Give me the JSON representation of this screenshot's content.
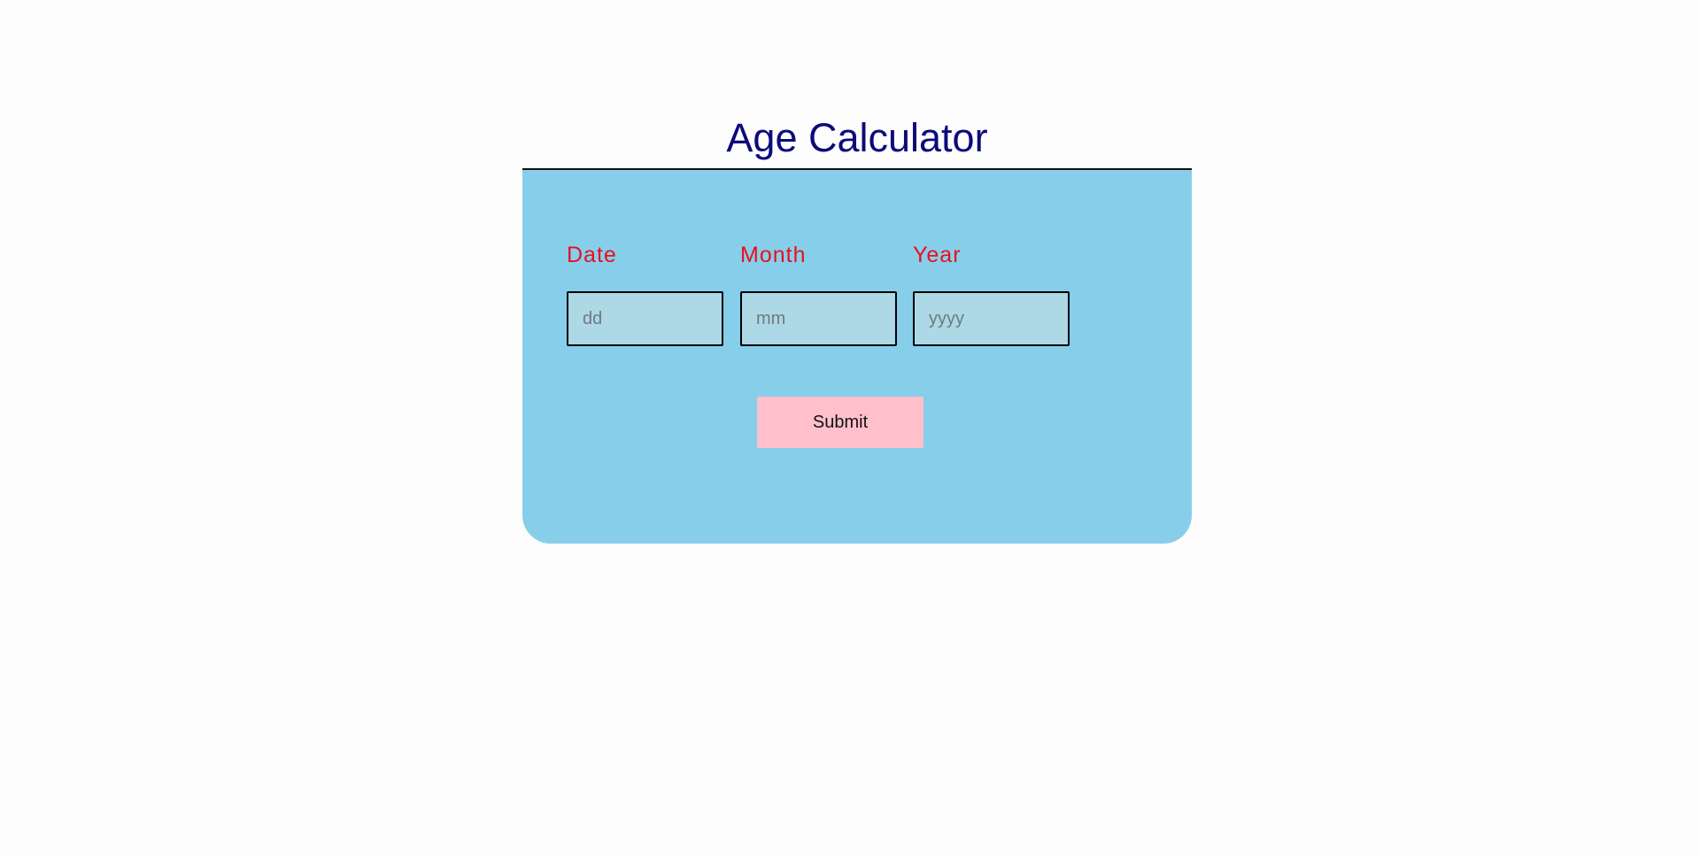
{
  "page": {
    "title": "Age Calculator"
  },
  "form": {
    "date": {
      "label": "Date",
      "value": "",
      "placeholder": "dd"
    },
    "month": {
      "label": "Month",
      "value": "",
      "placeholder": "mm"
    },
    "year": {
      "label": "Year",
      "value": "",
      "placeholder": "yyyy"
    },
    "submit_label": "Submit"
  },
  "colors": {
    "title": "#0b0b7a",
    "card_background": "#87ceeb",
    "input_background": "#add8e6",
    "label": "#e8101c",
    "submit_background": "#ffc0cb"
  }
}
